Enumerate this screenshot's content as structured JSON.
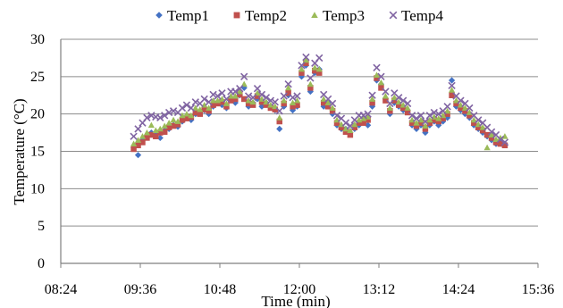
{
  "chart_data": {
    "type": "scatter",
    "title": "",
    "xlabel": "Time (min)",
    "ylabel": "Temperature (°C)",
    "xlim": [
      "08:24",
      "15:36"
    ],
    "ylim": [
      0,
      30
    ],
    "x_ticks": [
      "08:24",
      "09:36",
      "10:48",
      "12:00",
      "13:12",
      "14:24",
      "15:36"
    ],
    "y_ticks": [
      0,
      5,
      10,
      15,
      20,
      25,
      30
    ],
    "grid": "horizontal",
    "legend_position": "top",
    "x": [
      "09:30",
      "09:34",
      "09:38",
      "09:42",
      "09:46",
      "09:50",
      "09:54",
      "09:58",
      "10:02",
      "10:06",
      "10:10",
      "10:14",
      "10:18",
      "10:22",
      "10:26",
      "10:30",
      "10:34",
      "10:38",
      "10:42",
      "10:46",
      "10:50",
      "10:54",
      "10:58",
      "11:02",
      "11:06",
      "11:10",
      "11:14",
      "11:18",
      "11:22",
      "11:26",
      "11:30",
      "11:34",
      "11:38",
      "11:42",
      "11:46",
      "11:50",
      "11:54",
      "11:58",
      "12:02",
      "12:06",
      "12:10",
      "12:14",
      "12:18",
      "12:22",
      "12:26",
      "12:30",
      "12:34",
      "12:38",
      "12:42",
      "12:46",
      "12:50",
      "12:54",
      "12:58",
      "13:02",
      "13:06",
      "13:10",
      "13:14",
      "13:18",
      "13:22",
      "13:26",
      "13:30",
      "13:34",
      "13:38",
      "13:42",
      "13:46",
      "13:50",
      "13:54",
      "13:58",
      "14:02",
      "14:06",
      "14:10",
      "14:14",
      "14:18",
      "14:22",
      "14:26",
      "14:30",
      "14:34",
      "14:38",
      "14:42",
      "14:46",
      "14:50",
      "14:54",
      "14:58",
      "15:02",
      "15:06"
    ],
    "series": [
      {
        "name": "Temp1",
        "color": "#4472C4",
        "marker": "diamond",
        "values": [
          15.5,
          14.5,
          16.5,
          17.0,
          17.5,
          17.2,
          16.8,
          17.8,
          18.0,
          18.5,
          18.3,
          19.0,
          19.5,
          19.2,
          20.0,
          20.2,
          20.5,
          20.0,
          21.0,
          21.5,
          21.2,
          20.8,
          22.0,
          21.5,
          22.5,
          23.5,
          21.0,
          21.5,
          22.0,
          21.0,
          21.5,
          21.0,
          20.5,
          18.0,
          21.0,
          22.5,
          20.5,
          21.0,
          25.0,
          26.5,
          23.0,
          25.5,
          26.0,
          21.0,
          21.5,
          20.0,
          18.5,
          18.0,
          18.0,
          17.5,
          18.0,
          18.5,
          19.0,
          18.5,
          21.0,
          24.5,
          24.0,
          22.0,
          20.0,
          21.5,
          21.0,
          20.5,
          20.5,
          18.5,
          18.0,
          18.5,
          17.5,
          18.5,
          19.0,
          18.5,
          19.0,
          19.5,
          24.5,
          21.0,
          20.5,
          20.0,
          19.5,
          18.5,
          18.0,
          17.5,
          17.0,
          16.5,
          16.0,
          16.5,
          16.0
        ]
      },
      {
        "name": "Temp2",
        "color": "#C0504D",
        "marker": "square",
        "values": [
          15.3,
          15.8,
          16.2,
          16.8,
          17.2,
          17.0,
          17.5,
          17.6,
          18.2,
          18.4,
          18.6,
          19.2,
          19.4,
          19.6,
          20.2,
          20.0,
          20.6,
          20.4,
          21.2,
          21.4,
          21.6,
          21.0,
          21.8,
          22.0,
          22.6,
          22.0,
          21.4,
          21.2,
          22.4,
          21.6,
          21.2,
          20.8,
          20.6,
          19.0,
          21.4,
          22.8,
          21.0,
          21.2,
          25.5,
          26.8,
          23.5,
          25.8,
          25.5,
          21.5,
          21.0,
          20.4,
          18.8,
          18.2,
          17.6,
          17.2,
          18.2,
          18.8,
          18.8,
          19.2,
          21.5,
          24.8,
          23.5,
          21.8,
          20.4,
          21.8,
          21.2,
          20.8,
          20.2,
          18.8,
          18.4,
          18.8,
          18.0,
          18.8,
          19.2,
          19.0,
          19.4,
          20.0,
          22.5,
          21.4,
          20.8,
          20.4,
          19.8,
          18.8,
          18.2,
          17.8,
          17.2,
          16.8,
          16.2,
          16.0,
          15.8
        ]
      },
      {
        "name": "Temp3",
        "color": "#9BBB59",
        "marker": "triangle",
        "values": [
          16.0,
          16.5,
          17.0,
          17.5,
          18.5,
          17.8,
          18.0,
          18.4,
          18.8,
          19.2,
          19.0,
          19.8,
          20.0,
          19.8,
          20.8,
          20.6,
          21.2,
          20.8,
          21.8,
          21.8,
          22.0,
          21.4,
          22.4,
          22.4,
          23.0,
          24.0,
          21.8,
          21.6,
          22.8,
          22.0,
          21.6,
          21.2,
          21.0,
          19.5,
          21.8,
          23.5,
          21.5,
          21.8,
          26.0,
          27.2,
          24.0,
          26.2,
          26.0,
          22.0,
          21.5,
          20.8,
          19.2,
          18.6,
          18.0,
          17.8,
          18.6,
          19.2,
          19.4,
          19.6,
          22.0,
          25.2,
          24.2,
          22.4,
          20.8,
          22.2,
          21.6,
          21.2,
          20.8,
          19.2,
          18.8,
          19.2,
          18.4,
          19.2,
          19.6,
          19.4,
          19.8,
          20.4,
          23.2,
          21.8,
          21.2,
          20.8,
          20.2,
          19.2,
          18.6,
          18.2,
          15.5,
          17.2,
          16.6,
          16.8,
          17.0
        ]
      },
      {
        "name": "Temp4",
        "color": "#8064A2",
        "marker": "x",
        "values": [
          17.0,
          18.0,
          18.8,
          19.5,
          19.8,
          19.6,
          19.5,
          19.8,
          20.2,
          20.4,
          20.2,
          20.8,
          21.2,
          20.8,
          21.6,
          21.4,
          22.0,
          21.6,
          22.6,
          22.4,
          22.8,
          22.0,
          23.0,
          23.0,
          23.4,
          25.0,
          22.4,
          22.2,
          23.4,
          22.6,
          22.2,
          21.8,
          21.6,
          20.4,
          22.4,
          24.0,
          22.2,
          22.4,
          26.5,
          27.6,
          24.8,
          26.8,
          27.5,
          22.6,
          22.0,
          21.4,
          19.8,
          19.4,
          18.8,
          18.4,
          19.2,
          19.8,
          19.8,
          20.0,
          22.5,
          26.2,
          25.0,
          23.0,
          21.4,
          22.8,
          22.2,
          21.8,
          21.4,
          19.8,
          19.4,
          19.8,
          19.0,
          19.8,
          20.2,
          20.0,
          20.4,
          21.0,
          23.8,
          22.4,
          21.8,
          21.4,
          20.8,
          19.8,
          19.2,
          18.8,
          18.2,
          17.6,
          17.2,
          16.6,
          16.2
        ]
      }
    ]
  }
}
